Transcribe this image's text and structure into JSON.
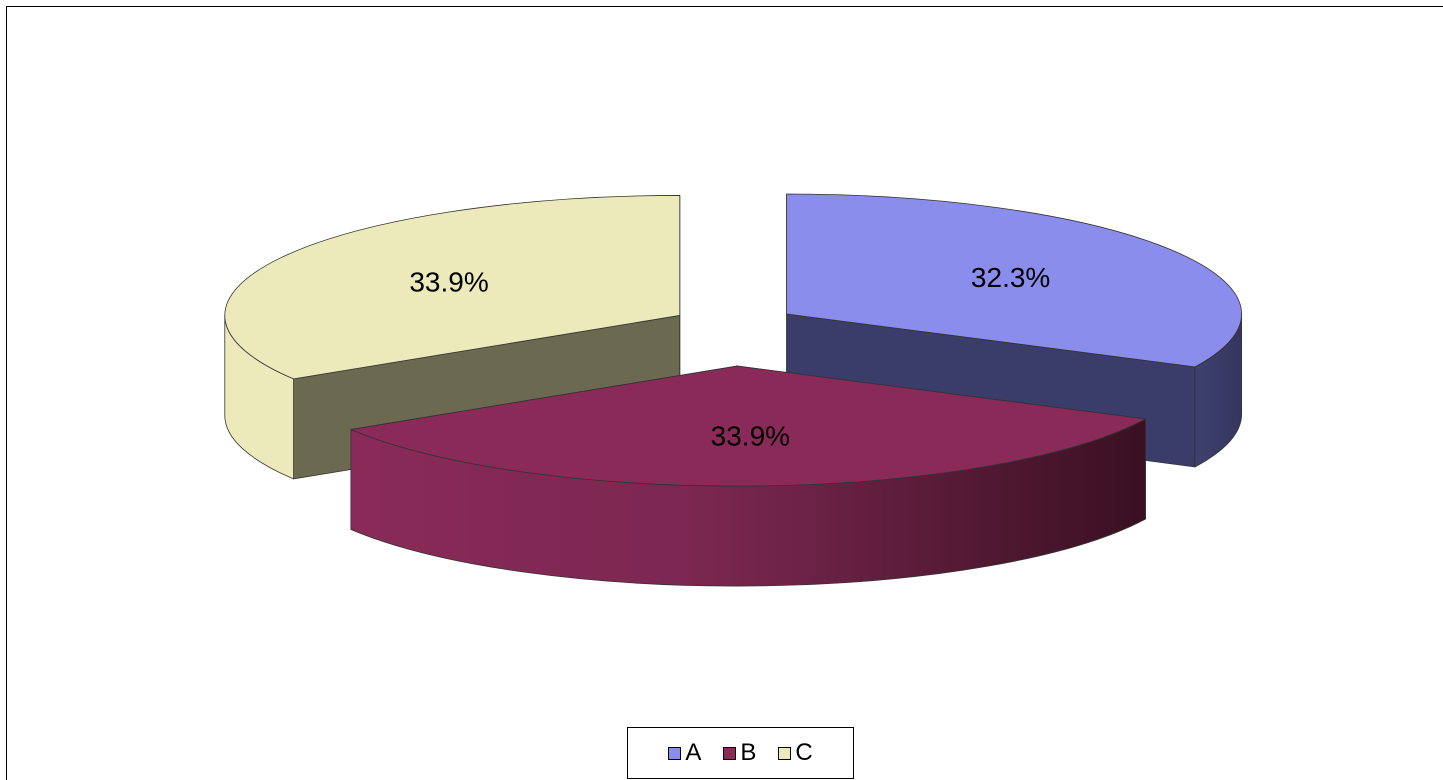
{
  "chart_data": {
    "type": "pie",
    "style": "3d-exploded",
    "categories": [
      "A",
      "B",
      "C"
    ],
    "values": [
      32.3,
      33.9,
      33.9
    ],
    "data_labels": [
      "32.3%",
      "33.9%",
      "33.9%"
    ],
    "colors": {
      "A": {
        "top": "#8b8ded",
        "side": "#3a3c6a"
      },
      "B": {
        "top": "#8a2a58",
        "side": "#7a2750",
        "side_dark": "#3a1022"
      },
      "C": {
        "top": "#eceabb",
        "side": "#eceabb",
        "inner": "#6b6a50"
      }
    },
    "legend_position": "bottom",
    "title": ""
  },
  "legend": {
    "items": [
      {
        "label": "A",
        "color": "#8b8ded"
      },
      {
        "label": "B",
        "color": "#8a2a58"
      },
      {
        "label": "C",
        "color": "#eceabb"
      }
    ]
  }
}
